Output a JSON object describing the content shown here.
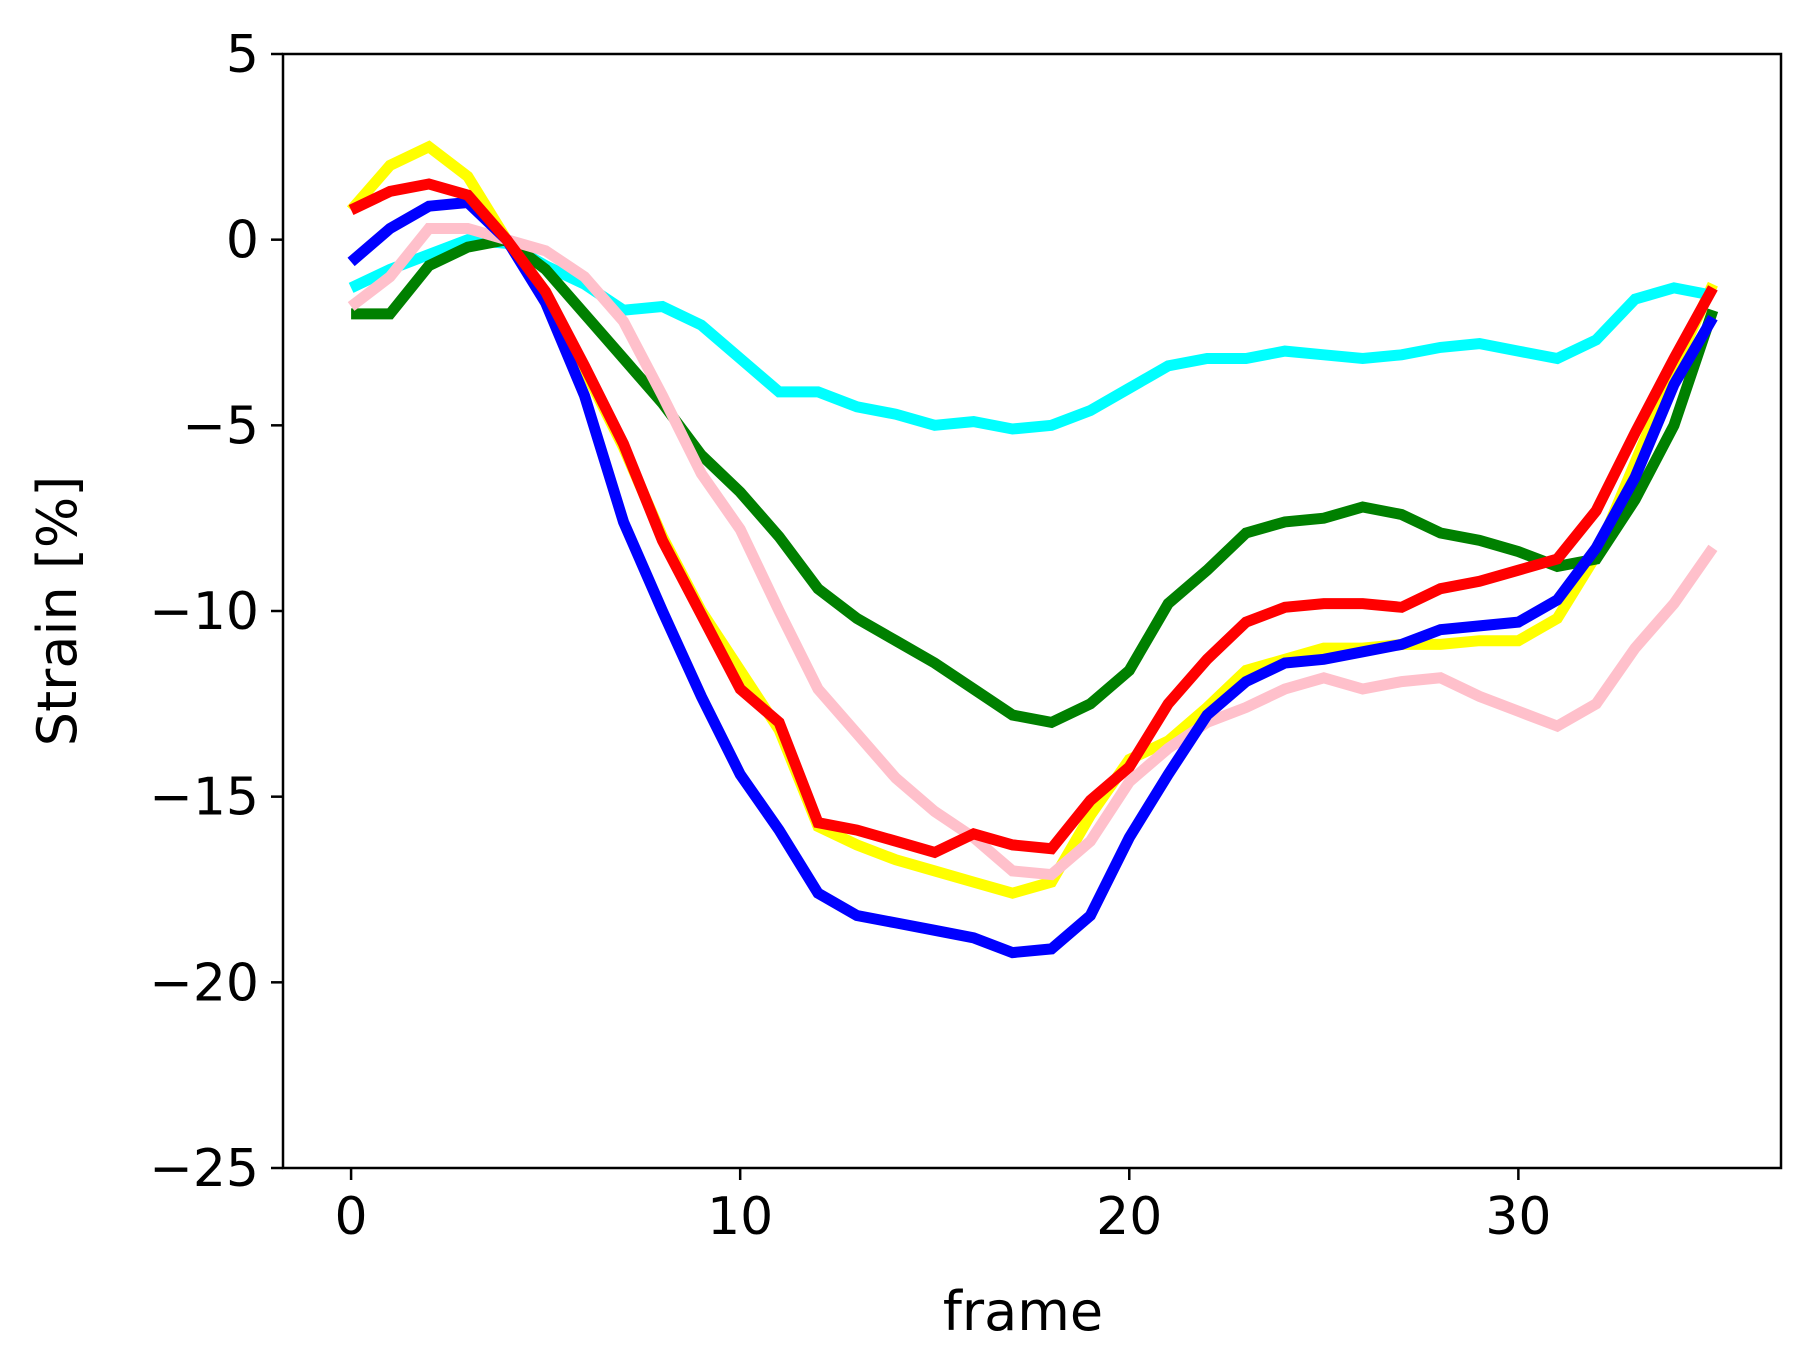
{
  "chart_data": {
    "type": "line",
    "title": "",
    "xlabel": "frame",
    "ylabel": "Strain [%]",
    "xlim": [
      -1.75,
      36.75
    ],
    "ylim": [
      -25,
      5
    ],
    "x_ticks": [
      0,
      10,
      20,
      30
    ],
    "x_tick_labels": [
      "0",
      "10",
      "20",
      "30"
    ],
    "y_ticks": [
      5,
      0,
      -5,
      -10,
      -15,
      -20,
      -25
    ],
    "y_tick_labels": [
      "5",
      "0",
      "−5",
      "−10",
      "−15",
      "−20",
      "−25"
    ],
    "grid": false,
    "legend": "none",
    "x": [
      0,
      1,
      2,
      3,
      4,
      5,
      6,
      7,
      8,
      9,
      10,
      11,
      12,
      13,
      14,
      15,
      16,
      17,
      18,
      19,
      20,
      21,
      22,
      23,
      24,
      25,
      26,
      27,
      28,
      29,
      30,
      31,
      32,
      33,
      34,
      35
    ],
    "series": [
      {
        "color": "#ffff00",
        "values": [
          0.8,
          2.0,
          2.5,
          1.7,
          0.0,
          -1.4,
          -3.5,
          -5.6,
          -8.0,
          -10.0,
          -11.6,
          -13.2,
          -15.8,
          -16.3,
          -16.7,
          -17.0,
          -17.3,
          -17.6,
          -17.3,
          -15.5,
          -14.0,
          -13.5,
          -12.6,
          -11.6,
          -11.3,
          -11.0,
          -11.0,
          -10.9,
          -10.9,
          -10.8,
          -10.8,
          -10.2,
          -8.5,
          -6.0,
          -3.5,
          -1.2
        ]
      },
      {
        "color": "#00ffff",
        "values": [
          -1.3,
          -0.8,
          -0.4,
          0.0,
          -0.1,
          -0.7,
          -1.2,
          -1.9,
          -1.8,
          -2.3,
          -3.2,
          -4.1,
          -4.1,
          -4.5,
          -4.7,
          -5.0,
          -4.9,
          -5.1,
          -5.0,
          -4.6,
          -4.0,
          -3.4,
          -3.2,
          -3.2,
          -3.0,
          -3.1,
          -3.2,
          -3.1,
          -2.9,
          -2.8,
          -3.0,
          -3.2,
          -2.7,
          -1.6,
          -1.3,
          -1.5
        ]
      },
      {
        "color": "#008000",
        "values": [
          -2.0,
          -2.0,
          -0.7,
          -0.2,
          0.0,
          -0.8,
          -2.0,
          -3.2,
          -4.4,
          -5.8,
          -6.8,
          -8.0,
          -9.4,
          -10.2,
          -10.8,
          -11.4,
          -12.1,
          -12.8,
          -13.0,
          -12.5,
          -11.6,
          -9.8,
          -8.9,
          -7.9,
          -7.6,
          -7.5,
          -7.2,
          -7.4,
          -7.9,
          -8.1,
          -8.4,
          -8.8,
          -8.6,
          -7.0,
          -5.0,
          -1.9
        ]
      },
      {
        "color": "#ffc0cb",
        "values": [
          -1.8,
          -1.0,
          0.3,
          0.3,
          0.0,
          -0.3,
          -1.0,
          -2.2,
          -4.2,
          -6.3,
          -7.8,
          -10.0,
          -12.1,
          -13.3,
          -14.5,
          -15.4,
          -16.1,
          -17.0,
          -17.1,
          -16.2,
          -14.6,
          -13.7,
          -13.0,
          -12.6,
          -12.1,
          -11.8,
          -12.1,
          -11.9,
          -11.8,
          -12.3,
          -12.7,
          -13.1,
          -12.5,
          -11.0,
          -9.8,
          -8.3
        ]
      },
      {
        "color": "#0000ff",
        "values": [
          -0.6,
          0.3,
          0.9,
          1.0,
          0.0,
          -1.7,
          -4.2,
          -7.6,
          -10.0,
          -12.3,
          -14.4,
          -15.9,
          -17.6,
          -18.2,
          -18.4,
          -18.6,
          -18.8,
          -19.2,
          -19.1,
          -18.2,
          -16.1,
          -14.4,
          -12.8,
          -11.9,
          -11.4,
          -11.3,
          -11.1,
          -10.9,
          -10.5,
          -10.4,
          -10.3,
          -9.7,
          -8.3,
          -6.4,
          -3.9,
          -2.1
        ]
      },
      {
        "color": "#ff0000",
        "values": [
          0.8,
          1.3,
          1.5,
          1.2,
          0.0,
          -1.4,
          -3.4,
          -5.5,
          -8.1,
          -10.1,
          -12.1,
          -13.0,
          -15.7,
          -15.9,
          -16.2,
          -16.5,
          -16.0,
          -16.3,
          -16.4,
          -15.1,
          -14.2,
          -12.5,
          -11.3,
          -10.3,
          -9.9,
          -9.8,
          -9.8,
          -9.9,
          -9.4,
          -9.2,
          -8.9,
          -8.6,
          -7.3,
          -5.2,
          -3.2,
          -1.3
        ]
      }
    ]
  }
}
